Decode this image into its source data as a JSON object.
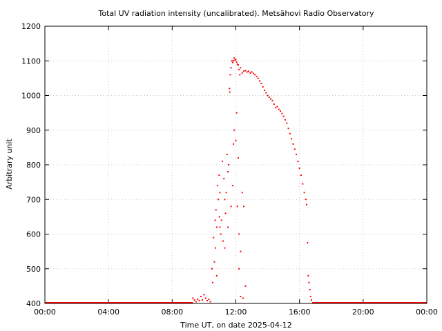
{
  "chart_data": {
    "type": "scatter",
    "title": "Total UV radiation intensity (uncalibrated). Metsähovi Radio Observatory",
    "xlabel": "Time UT, on date 2025-04-12",
    "ylabel": "Arbitrary unit",
    "xlim": [
      0,
      24
    ],
    "ylim": [
      400,
      1200
    ],
    "x_ticks": [
      {
        "value": 0,
        "label": "00:00"
      },
      {
        "value": 4,
        "label": "04:00"
      },
      {
        "value": 8,
        "label": "08:00"
      },
      {
        "value": 12,
        "label": "12:00"
      },
      {
        "value": 16,
        "label": "16:00"
      },
      {
        "value": 20,
        "label": "20:00"
      },
      {
        "value": 24,
        "label": "00:00"
      }
    ],
    "y_ticks": [
      {
        "value": 400,
        "label": "400"
      },
      {
        "value": 500,
        "label": "500"
      },
      {
        "value": 600,
        "label": "600"
      },
      {
        "value": 700,
        "label": "700"
      },
      {
        "value": 800,
        "label": "800"
      },
      {
        "value": 900,
        "label": "900"
      },
      {
        "value": 1000,
        "label": "1000"
      },
      {
        "value": 1100,
        "label": "1100"
      },
      {
        "value": 1200,
        "label": "1200"
      }
    ],
    "grid": true,
    "series": [
      {
        "color": "#ff0000",
        "baseline": {
          "y": 400,
          "x_ranges": [
            [
              0,
              9.3
            ],
            [
              16.8,
              24
            ]
          ]
        },
        "points": [
          [
            9.3,
            415
          ],
          [
            9.4,
            410
          ],
          [
            9.5,
            405
          ],
          [
            9.6,
            412
          ],
          [
            9.7,
            408
          ],
          [
            9.8,
            420
          ],
          [
            9.9,
            410
          ],
          [
            10.0,
            425
          ],
          [
            10.1,
            415
          ],
          [
            10.2,
            408
          ],
          [
            10.3,
            412
          ],
          [
            10.4,
            405
          ],
          [
            10.5,
            500
          ],
          [
            10.55,
            460
          ],
          [
            10.6,
            590
          ],
          [
            10.65,
            520
          ],
          [
            10.7,
            640
          ],
          [
            10.72,
            560
          ],
          [
            10.75,
            670
          ],
          [
            10.8,
            620
          ],
          [
            10.85,
            740
          ],
          [
            10.9,
            700
          ],
          [
            10.95,
            770
          ],
          [
            10.97,
            650
          ],
          [
            11.0,
            720
          ],
          [
            11.05,
            600
          ],
          [
            11.1,
            640
          ],
          [
            11.15,
            810
          ],
          [
            11.2,
            580
          ],
          [
            11.25,
            760
          ],
          [
            11.3,
            700
          ],
          [
            11.35,
            660
          ],
          [
            11.4,
            720
          ],
          [
            11.45,
            830
          ],
          [
            11.5,
            780
          ],
          [
            11.55,
            800
          ],
          [
            11.6,
            1020
          ],
          [
            11.62,
            1010
          ],
          [
            11.65,
            1060
          ],
          [
            11.7,
            1080
          ],
          [
            11.75,
            1100
          ],
          [
            11.8,
            1095
          ],
          [
            11.85,
            1100
          ],
          [
            11.9,
            1108
          ],
          [
            11.95,
            1102
          ],
          [
            12.0,
            1104
          ],
          [
            12.05,
            1096
          ],
          [
            12.1,
            1090
          ],
          [
            12.15,
            1088
          ],
          [
            12.2,
            1075
          ],
          [
            12.25,
            1060
          ],
          [
            12.3,
            1080
          ],
          [
            12.4,
            1065
          ],
          [
            12.5,
            1070
          ],
          [
            12.6,
            1072
          ],
          [
            12.7,
            1068
          ],
          [
            12.8,
            1070
          ],
          [
            12.9,
            1065
          ],
          [
            13.0,
            1068
          ],
          [
            13.1,
            1064
          ],
          [
            13.2,
            1060
          ],
          [
            13.3,
            1055
          ],
          [
            13.4,
            1050
          ],
          [
            13.5,
            1042
          ],
          [
            13.6,
            1035
          ],
          [
            13.7,
            1025
          ],
          [
            13.8,
            1015
          ],
          [
            13.9,
            1008
          ],
          [
            14.0,
            1000
          ],
          [
            14.1,
            995
          ],
          [
            14.2,
            990
          ],
          [
            14.3,
            985
          ],
          [
            14.4,
            975
          ],
          [
            14.5,
            965
          ],
          [
            14.6,
            968
          ],
          [
            14.7,
            960
          ],
          [
            14.8,
            955
          ],
          [
            14.9,
            948
          ],
          [
            15.0,
            940
          ],
          [
            15.1,
            930
          ],
          [
            15.2,
            920
          ],
          [
            15.3,
            905
          ],
          [
            15.4,
            890
          ],
          [
            15.5,
            875
          ],
          [
            15.6,
            860
          ],
          [
            15.7,
            845
          ],
          [
            15.8,
            830
          ],
          [
            15.9,
            810
          ],
          [
            16.0,
            790
          ],
          [
            16.1,
            770
          ],
          [
            16.2,
            745
          ],
          [
            16.3,
            720
          ],
          [
            16.4,
            700
          ],
          [
            16.45,
            685
          ],
          [
            11.9,
            900
          ],
          [
            12.0,
            870
          ],
          [
            12.1,
            680
          ],
          [
            12.2,
            600
          ],
          [
            12.3,
            550
          ],
          [
            12.4,
            720
          ],
          [
            12.5,
            680
          ],
          [
            12.6,
            450
          ],
          [
            12.3,
            420
          ],
          [
            11.7,
            680
          ],
          [
            11.8,
            740
          ],
          [
            11.5,
            620
          ],
          [
            11.3,
            560
          ],
          [
            11.0,
            620
          ],
          [
            10.8,
            480
          ],
          [
            12.05,
            950
          ],
          [
            12.15,
            820
          ],
          [
            11.85,
            860
          ],
          [
            12.2,
            500
          ],
          [
            12.45,
            415
          ],
          [
            16.5,
            575
          ],
          [
            16.55,
            480
          ],
          [
            16.6,
            460
          ],
          [
            16.65,
            440
          ],
          [
            16.7,
            420
          ],
          [
            16.75,
            410
          ]
        ]
      }
    ]
  }
}
